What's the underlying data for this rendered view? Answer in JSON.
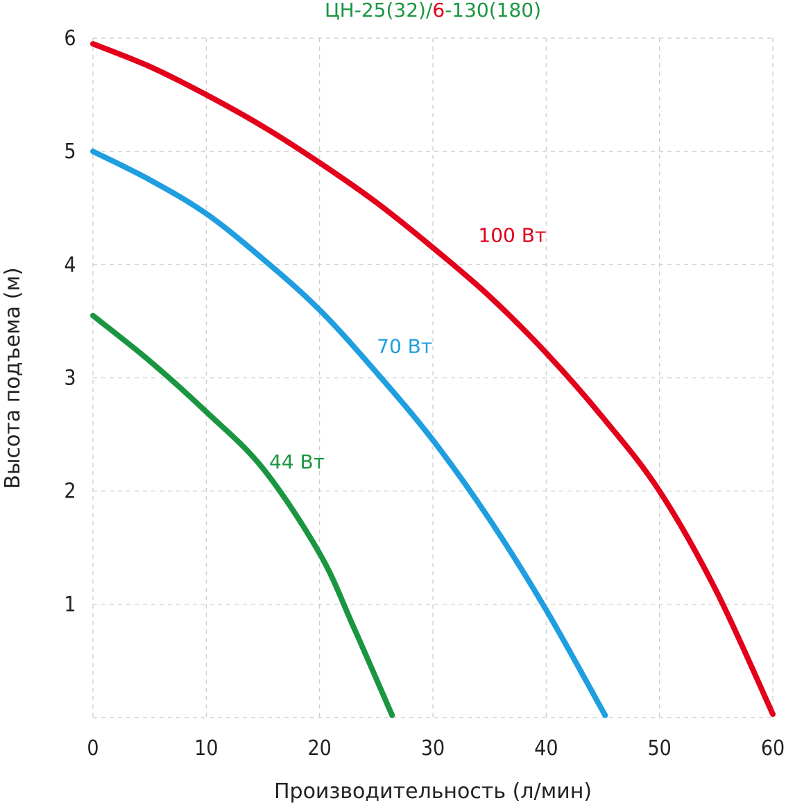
{
  "chart_data": {
    "type": "line",
    "title_parts": [
      {
        "text": "ЦН-25(32)/",
        "color": "#1a9641"
      },
      {
        "text": "6",
        "color": "#e2001a"
      },
      {
        "text": "-130(180)",
        "color": "#1a9641"
      }
    ],
    "xlabel": "Производительность (л/мин)",
    "ylabel": "Высота подъема (м)",
    "xlim": [
      0,
      60
    ],
    "ylim": [
      0,
      6
    ],
    "x_ticks": [
      0,
      10,
      20,
      30,
      40,
      50,
      60
    ],
    "y_ticks": [
      1,
      2,
      3,
      4,
      5,
      6
    ],
    "grid": true,
    "series": [
      {
        "name": "100 Вт",
        "color": "#e2001a",
        "x": [
          0,
          5,
          10,
          15,
          20,
          25,
          30,
          35,
          40,
          45,
          50,
          55,
          60
        ],
        "y": [
          5.95,
          5.75,
          5.5,
          5.22,
          4.9,
          4.55,
          4.15,
          3.72,
          3.22,
          2.65,
          2.0,
          1.12,
          0.03
        ]
      },
      {
        "name": "70 Вт",
        "color": "#1f9ee0",
        "x": [
          0,
          5,
          10,
          15,
          20,
          25,
          30,
          35,
          40,
          45.2
        ],
        "y": [
          5.0,
          4.75,
          4.45,
          4.05,
          3.6,
          3.05,
          2.45,
          1.75,
          0.95,
          0.02
        ]
      },
      {
        "name": "44 Вт",
        "color": "#1a9641",
        "x": [
          0,
          5,
          10,
          15,
          20,
          23,
          26.4
        ],
        "y": [
          3.55,
          3.15,
          2.7,
          2.2,
          1.45,
          0.8,
          0.02
        ]
      }
    ],
    "annotations": [
      {
        "text": "100 Вт",
        "x": 37,
        "y": 4.2,
        "color": "#e2001a"
      },
      {
        "text": "70 Вт",
        "x": 27.5,
        "y": 3.22,
        "color": "#1f9ee0"
      },
      {
        "text": "44 Вт",
        "x": 18,
        "y": 2.2,
        "color": "#1a9641"
      }
    ]
  }
}
